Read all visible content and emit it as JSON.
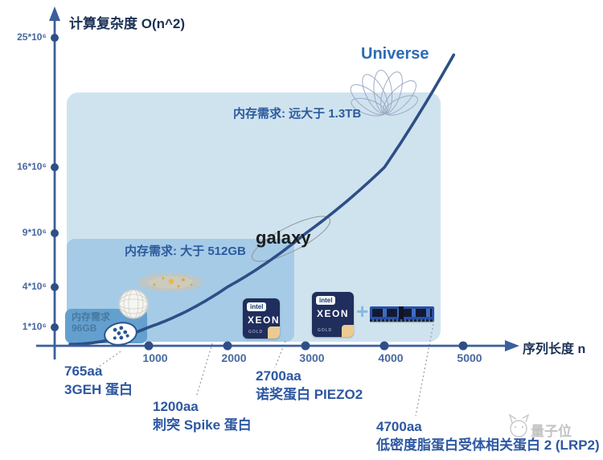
{
  "title": "计算复杂度 O(n^2)",
  "axes": {
    "x": {
      "label": "序列长度 n",
      "ticks": [
        "1000",
        "2000",
        "3000",
        "4000",
        "5000"
      ]
    },
    "y": {
      "ticks": [
        "25*10⁶",
        "16*10⁶",
        "9*10⁶",
        "4*10⁶",
        "1*10⁶"
      ]
    }
  },
  "memory_boxes": {
    "outer": {
      "label": "内存需求: 远大于 1.3TB"
    },
    "middle": {
      "label": "内存需求: 大于 512GB"
    },
    "inner": {
      "line1": "内存需求",
      "line2": "96GB"
    }
  },
  "annotations": {
    "universe": "Universe",
    "galaxy": "galaxy"
  },
  "chips": {
    "brand": "intel",
    "model": "XEON",
    "tier": "GOLD",
    "plus": "+"
  },
  "proteins": [
    {
      "size": "765aa",
      "name": "3GEH 蛋白"
    },
    {
      "size": "1200aa",
      "name": "刺突 Spike 蛋白"
    },
    {
      "size": "2700aa",
      "name": "诺奖蛋白 PIEZO2"
    },
    {
      "size": "4700aa",
      "name": "低密度脂蛋白受体相关蛋白 2 (LRP2)"
    }
  ],
  "watermark": "量子位",
  "icons": {
    "universe": "flower-sketch",
    "galaxy": "tilted-ellipse-sketch",
    "solar_system": "ellipse-with-yellow-dots",
    "protein_sphere": "white-wireframe-sphere",
    "protein_cluster": "white-ellipse-with-blue-dots",
    "cpu": "intel-xeon-gold-badge",
    "memory": "blue-ram-dimm",
    "watermark_logo": "cat-face"
  },
  "colors": {
    "axis": "#3a5f9c",
    "curve": "#2d4f86",
    "tick_text": "#48699f",
    "label_text": "#2d57a2",
    "title_text": "#1b3155",
    "box_outer": "#cfe3ef",
    "box_middle": "#a6cbe6",
    "box_inner": "#64a0cf",
    "universe_text": "#2e6cb3",
    "galaxy_text": "#1c1d1f",
    "chip_bg": "#1f2e5c",
    "chip_gold": "#eccb92",
    "ram_blue": "#2a4fa8",
    "watermark": "#c3c3c3"
  },
  "chart_data": {
    "type": "line",
    "title": "计算复杂度 O(n^2)",
    "xlabel": "序列长度 n",
    "ylabel": "计算复杂度 O(n^2)",
    "xlim": [
      0,
      5600
    ],
    "ylim": [
      0,
      26000000
    ],
    "x_ticks": [
      1000,
      2000,
      3000,
      4000,
      5000
    ],
    "y_tick_labels": [
      "1*10⁶",
      "4*10⁶",
      "9*10⁶",
      "16*10⁶",
      "25*10⁶"
    ],
    "y_tick_values": [
      1000000,
      4000000,
      9000000,
      16000000,
      25000000
    ],
    "grid": false,
    "legend_position": "none",
    "series": [
      {
        "name": "计算复杂度 O(n^2)",
        "x": [
          0,
          1000,
          2000,
          3000,
          4000,
          5000
        ],
        "y": [
          0,
          1000000,
          4000000,
          9000000,
          16000000,
          25000000
        ]
      }
    ],
    "annotations": {
      "memory_regions": [
        {
          "label": "内存需求: 远大于 1.3TB",
          "x_extent_aa": 4700
        },
        {
          "label": "内存需求: 大于 512GB",
          "x_extent_aa": 2700
        },
        {
          "label": "内存需求 96GB",
          "x_extent_aa": 765
        }
      ],
      "scale_markers": [
        "Universe",
        "galaxy"
      ],
      "protein_points": [
        {
          "x_aa": 765,
          "label": "765aa 3GEH 蛋白"
        },
        {
          "x_aa": 1200,
          "label": "1200aa 刺突 Spike 蛋白"
        },
        {
          "x_aa": 2700,
          "label": "2700aa 诺奖蛋白 PIEZO2"
        },
        {
          "x_aa": 4700,
          "label": "4700aa 低密度脂蛋白受体相关蛋白 2 (LRP2)"
        }
      ]
    }
  }
}
